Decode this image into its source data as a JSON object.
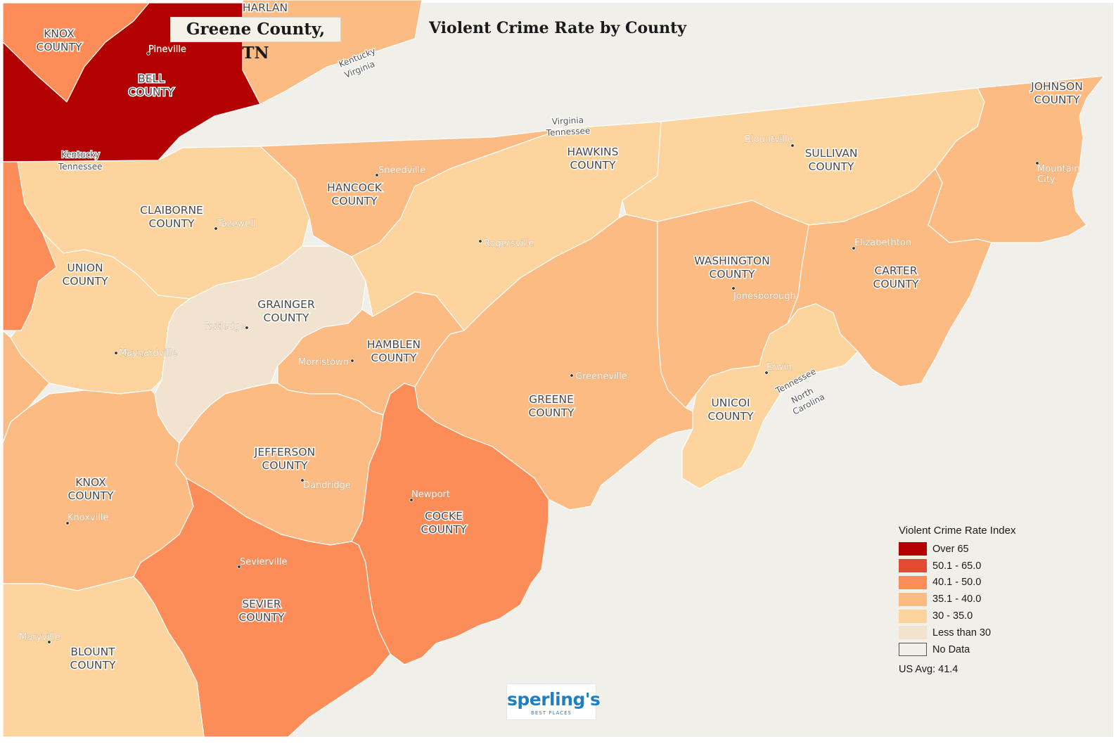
{
  "page_title": "Greene County, TN",
  "map_title": "Violent Crime Rate by County",
  "colors": {
    "background": "#f1efea",
    "over_65": "#b30000",
    "r50_65": "#e34a33",
    "r40_50": "#fc8d59",
    "r35_40": "#fdbb84",
    "r30_35": "#fdd49e",
    "less_30": "#f1e3d0",
    "no_data": "#f1efea",
    "border": "#ffffff"
  },
  "counties": [
    {
      "key": "bell_ky",
      "name_line1": "BELL",
      "name_line2": "COUNTY",
      "legend_class": "Over 65"
    },
    {
      "key": "knox_ky",
      "name_line1": "KNOX",
      "name_line2": "COUNTY",
      "legend_class": "40.1 - 50.0"
    },
    {
      "key": "harlan_ky",
      "name_line1": "HARLAN",
      "name_line2": "",
      "legend_class": "35.1 - 40.0"
    },
    {
      "key": "claiborne",
      "name_line1": "CLAIBORNE",
      "name_line2": "COUNTY",
      "legend_class": "30 - 35.0"
    },
    {
      "key": "hancock",
      "name_line1": "HANCOCK",
      "name_line2": "COUNTY",
      "legend_class": "35.1 - 40.0"
    },
    {
      "key": "hawkins",
      "name_line1": "HAWKINS",
      "name_line2": "COUNTY",
      "legend_class": "30 - 35.0"
    },
    {
      "key": "sullivan",
      "name_line1": "SULLIVAN",
      "name_line2": "COUNTY",
      "legend_class": "30 - 35.0"
    },
    {
      "key": "johnson",
      "name_line1": "JOHNSON",
      "name_line2": "COUNTY",
      "legend_class": "35.1 - 40.0"
    },
    {
      "key": "union",
      "name_line1": "UNION",
      "name_line2": "COUNTY",
      "legend_class": "30 - 35.0"
    },
    {
      "key": "grainger",
      "name_line1": "GRAINGER",
      "name_line2": "COUNTY",
      "legend_class": "Less than 30"
    },
    {
      "key": "hamblen",
      "name_line1": "HAMBLEN",
      "name_line2": "COUNTY",
      "legend_class": "35.1 - 40.0"
    },
    {
      "key": "washington",
      "name_line1": "WASHINGTON",
      "name_line2": "COUNTY",
      "legend_class": "35.1 - 40.0"
    },
    {
      "key": "carter",
      "name_line1": "CARTER",
      "name_line2": "COUNTY",
      "legend_class": "35.1 - 40.0"
    },
    {
      "key": "greene",
      "name_line1": "GREENE",
      "name_line2": "COUNTY",
      "legend_class": "35.1 - 40.0"
    },
    {
      "key": "unicoi",
      "name_line1": "UNICOI",
      "name_line2": "COUNTY",
      "legend_class": "30 - 35.0"
    },
    {
      "key": "jefferson",
      "name_line1": "JEFFERSON",
      "name_line2": "COUNTY",
      "legend_class": "35.1 - 40.0"
    },
    {
      "key": "knox_tn",
      "name_line1": "KNOX",
      "name_line2": "COUNTY",
      "legend_class": "35.1 - 40.0"
    },
    {
      "key": "cocke",
      "name_line1": "COCKE",
      "name_line2": "COUNTY",
      "legend_class": "40.1 - 50.0"
    },
    {
      "key": "sevier",
      "name_line1": "SEVIER",
      "name_line2": "COUNTY",
      "legend_class": "40.1 - 50.0"
    },
    {
      "key": "blount",
      "name_line1": "BLOUNT",
      "name_line2": "COUNTY",
      "legend_class": "30 - 35.0"
    }
  ],
  "cities": {
    "pineville": "Pineville",
    "sneedville": "Sneedville",
    "tazewell": "Tazewell",
    "rogersville": "Rogersville",
    "blountville": "Blountville",
    "mountain_city_1": "Mountain",
    "mountain_city_2": "City",
    "elizabethton": "Elizabethton",
    "jonesborough": "Jonesborough",
    "rutledge": "Rutledge",
    "maynardville": "Maynardville",
    "morristown": "Morristown",
    "greeneville": "Greeneville",
    "erwin": "Erwin",
    "dandridge": "Dandridge",
    "newport": "Newport",
    "knoxville": "Knoxville",
    "sevierville": "Sevierville",
    "maryville": "Maryville"
  },
  "borders": {
    "ky_va_1": "Kentucky",
    "ky_va_2": "Virginia",
    "va_tn_1": "Virginia",
    "va_tn_2": "Tennessee",
    "ky_tn_1": "Kentucky",
    "ky_tn_2": "Tennessee",
    "tn_nc_1": "Tennessee",
    "tn_nc_2": "North",
    "tn_nc_3": "Carolina"
  },
  "legend": {
    "title": "Violent Crime Rate Index",
    "items": [
      {
        "label": "Over 65",
        "color": "#b30000"
      },
      {
        "label": "50.1 - 65.0",
        "color": "#e34a33"
      },
      {
        "label": "40.1 - 50.0",
        "color": "#fc8d59"
      },
      {
        "label": "35.1 - 40.0",
        "color": "#fdbb84"
      },
      {
        "label": "30 - 35.0",
        "color": "#fdd49e"
      },
      {
        "label": "Less than 30",
        "color": "#f1e3d0"
      },
      {
        "label": "No Data",
        "color": "#f1efea"
      }
    ],
    "us_avg": "US Avg: 41.4"
  },
  "logo": {
    "main": "sperling's",
    "sub": "BEST PLACES"
  }
}
